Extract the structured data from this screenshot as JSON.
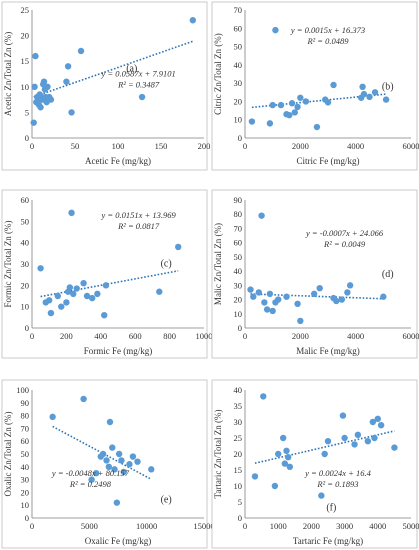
{
  "colors": {
    "marker": "#5b9bd5",
    "trendline": "#2e75b6",
    "axis": "#7f7f7f",
    "border": "#bfbfbf",
    "text": "#333333"
  },
  "chart_data": [
    {
      "id": "a",
      "type": "scatter",
      "panel_label": "(a)",
      "xlabel": "Acetic Fe (mg/kg)",
      "ylabel": "Acetic Zn/Total Zn (%)",
      "xlim": [
        0,
        200
      ],
      "ylim": [
        0,
        25
      ],
      "xticks": [
        0,
        50,
        100,
        150,
        200
      ],
      "yticks": [
        0,
        5,
        10,
        15,
        20,
        25
      ],
      "equation": "y = 0.0587x + 7.9101",
      "r_squared": "R² = 0.3487",
      "trendline": {
        "slope": 0.0587,
        "intercept": 7.9101
      },
      "legend": "none",
      "points": [
        {
          "x": 2,
          "y": 3
        },
        {
          "x": 3,
          "y": 10
        },
        {
          "x": 4,
          "y": 16
        },
        {
          "x": 5,
          "y": 7
        },
        {
          "x": 6,
          "y": 8
        },
        {
          "x": 7,
          "y": 7
        },
        {
          "x": 8,
          "y": 6.5
        },
        {
          "x": 9,
          "y": 8.5
        },
        {
          "x": 10,
          "y": 6
        },
        {
          "x": 11,
          "y": 8
        },
        {
          "x": 12,
          "y": 7.5
        },
        {
          "x": 13,
          "y": 10.5
        },
        {
          "x": 14,
          "y": 11
        },
        {
          "x": 15,
          "y": 9.5
        },
        {
          "x": 16,
          "y": 8
        },
        {
          "x": 17,
          "y": 7
        },
        {
          "x": 18,
          "y": 10
        },
        {
          "x": 20,
          "y": 8
        },
        {
          "x": 22,
          "y": 7.5
        },
        {
          "x": 40,
          "y": 11
        },
        {
          "x": 42,
          "y": 14
        },
        {
          "x": 46,
          "y": 5
        },
        {
          "x": 57,
          "y": 17
        },
        {
          "x": 128,
          "y": 8
        },
        {
          "x": 187,
          "y": 23
        }
      ]
    },
    {
      "id": "b",
      "type": "scatter",
      "panel_label": "(b)",
      "xlabel": "Citric Fe (mg/kg)",
      "ylabel": "Citric Zn/Total Zn (%)",
      "xlim": [
        0,
        6000
      ],
      "ylim": [
        0,
        70
      ],
      "xticks": [
        0,
        2000,
        4000,
        6000
      ],
      "yticks": [
        0,
        10,
        20,
        30,
        40,
        50,
        60,
        70
      ],
      "equation": "y = 0.0015x + 16.373",
      "r_squared": "R² = 0.0489",
      "trendline": {
        "slope": 0.0015,
        "intercept": 16.373
      },
      "legend": "none",
      "points": [
        {
          "x": 250,
          "y": 9
        },
        {
          "x": 900,
          "y": 8
        },
        {
          "x": 1000,
          "y": 18
        },
        {
          "x": 1100,
          "y": 59
        },
        {
          "x": 1300,
          "y": 18
        },
        {
          "x": 1500,
          "y": 13
        },
        {
          "x": 1600,
          "y": 12.5
        },
        {
          "x": 1700,
          "y": 19
        },
        {
          "x": 1800,
          "y": 14
        },
        {
          "x": 1900,
          "y": 17
        },
        {
          "x": 2000,
          "y": 22
        },
        {
          "x": 2200,
          "y": 20
        },
        {
          "x": 2600,
          "y": 6
        },
        {
          "x": 2900,
          "y": 21
        },
        {
          "x": 3000,
          "y": 19.5
        },
        {
          "x": 3200,
          "y": 29
        },
        {
          "x": 4200,
          "y": 22
        },
        {
          "x": 4250,
          "y": 28
        },
        {
          "x": 4300,
          "y": 24
        },
        {
          "x": 4500,
          "y": 22.5
        },
        {
          "x": 4700,
          "y": 25
        },
        {
          "x": 5100,
          "y": 21
        }
      ]
    },
    {
      "id": "c",
      "type": "scatter",
      "panel_label": "(c)",
      "xlabel": "Formic Fe (mg/kg)",
      "ylabel": "Formic Zn/Total Zn (%)",
      "xlim": [
        0,
        1000
      ],
      "ylim": [
        0,
        60
      ],
      "xticks": [
        0,
        200,
        400,
        600,
        800,
        1000
      ],
      "yticks": [
        0,
        10,
        20,
        30,
        40,
        50,
        60
      ],
      "equation": "y = 0.0151x + 13.969",
      "r_squared": "R² = 0.0817",
      "trendline": {
        "slope": 0.0151,
        "intercept": 13.969
      },
      "legend": "none",
      "points": [
        {
          "x": 50,
          "y": 28
        },
        {
          "x": 80,
          "y": 12
        },
        {
          "x": 100,
          "y": 13
        },
        {
          "x": 110,
          "y": 7
        },
        {
          "x": 150,
          "y": 15
        },
        {
          "x": 170,
          "y": 10
        },
        {
          "x": 200,
          "y": 12
        },
        {
          "x": 210,
          "y": 17
        },
        {
          "x": 220,
          "y": 19
        },
        {
          "x": 230,
          "y": 54
        },
        {
          "x": 240,
          "y": 16
        },
        {
          "x": 260,
          "y": 18.5
        },
        {
          "x": 300,
          "y": 21
        },
        {
          "x": 320,
          "y": 15
        },
        {
          "x": 350,
          "y": 14
        },
        {
          "x": 380,
          "y": 16
        },
        {
          "x": 420,
          "y": 6
        },
        {
          "x": 430,
          "y": 20
        },
        {
          "x": 740,
          "y": 17
        },
        {
          "x": 850,
          "y": 38
        }
      ]
    },
    {
      "id": "d",
      "type": "scatter",
      "panel_label": "(d)",
      "xlabel": "Malic Fe (mg/kg)",
      "ylabel": "Malic Zn/Total Zn (%)",
      "xlim": [
        0,
        6000
      ],
      "ylim": [
        0,
        90
      ],
      "xticks": [
        0,
        2000,
        4000,
        6000
      ],
      "yticks": [
        0,
        10,
        20,
        30,
        40,
        50,
        60,
        70,
        80,
        90
      ],
      "equation": "y = -0.0007x + 24.066",
      "r_squared": "R² = 0.0049",
      "trendline": {
        "slope": -0.0007,
        "intercept": 24.066
      },
      "legend": "none",
      "points": [
        {
          "x": 200,
          "y": 27
        },
        {
          "x": 300,
          "y": 22
        },
        {
          "x": 500,
          "y": 25
        },
        {
          "x": 600,
          "y": 79
        },
        {
          "x": 700,
          "y": 18
        },
        {
          "x": 800,
          "y": 13
        },
        {
          "x": 900,
          "y": 24
        },
        {
          "x": 1000,
          "y": 12
        },
        {
          "x": 1100,
          "y": 18
        },
        {
          "x": 1200,
          "y": 20
        },
        {
          "x": 1500,
          "y": 22
        },
        {
          "x": 1900,
          "y": 17
        },
        {
          "x": 2000,
          "y": 5
        },
        {
          "x": 2500,
          "y": 24
        },
        {
          "x": 2700,
          "y": 28
        },
        {
          "x": 3200,
          "y": 21
        },
        {
          "x": 3300,
          "y": 19
        },
        {
          "x": 3500,
          "y": 20
        },
        {
          "x": 3700,
          "y": 25
        },
        {
          "x": 3800,
          "y": 30
        },
        {
          "x": 5000,
          "y": 22
        }
      ]
    },
    {
      "id": "e",
      "type": "scatter",
      "panel_label": "(e)",
      "xlabel": "Oxalic Fe (mg/kg)",
      "ylabel": "Oxalic Zn/Total Zn (%)",
      "xlim": [
        0,
        15000
      ],
      "ylim": [
        0,
        100
      ],
      "xticks": [
        0,
        5000,
        10000,
        15000
      ],
      "yticks": [
        0,
        10,
        20,
        30,
        40,
        50,
        60,
        70,
        80,
        90,
        100
      ],
      "equation": "y = -0.0048x + 80.157",
      "r_squared": "R² = 0.2498",
      "trendline": {
        "slope": -0.0048,
        "intercept": 80.157
      },
      "legend": "none",
      "points": [
        {
          "x": 1800,
          "y": 79
        },
        {
          "x": 4500,
          "y": 93
        },
        {
          "x": 5200,
          "y": 30
        },
        {
          "x": 5600,
          "y": 35
        },
        {
          "x": 6000,
          "y": 48
        },
        {
          "x": 6200,
          "y": 50
        },
        {
          "x": 6500,
          "y": 45
        },
        {
          "x": 6700,
          "y": 40
        },
        {
          "x": 6800,
          "y": 75
        },
        {
          "x": 7000,
          "y": 55
        },
        {
          "x": 7200,
          "y": 38
        },
        {
          "x": 7400,
          "y": 12
        },
        {
          "x": 7600,
          "y": 50
        },
        {
          "x": 7800,
          "y": 45
        },
        {
          "x": 8000,
          "y": 36
        },
        {
          "x": 8500,
          "y": 42
        },
        {
          "x": 8800,
          "y": 48
        },
        {
          "x": 9200,
          "y": 44
        },
        {
          "x": 10400,
          "y": 38
        }
      ]
    },
    {
      "id": "f",
      "type": "scatter",
      "panel_label": "(f)",
      "xlabel": "Tartaric Fe (mg/kg)",
      "ylabel": "Tartaric Zn/Total Zn (%)",
      "xlim": [
        0,
        5000
      ],
      "ylim": [
        0,
        40
      ],
      "xticks": [
        0,
        1000,
        2000,
        3000,
        4000,
        5000
      ],
      "yticks": [
        0,
        5,
        10,
        15,
        20,
        25,
        30,
        35,
        40
      ],
      "equation": "y = 0.0024x + 16.4",
      "r_squared": "R² = 0.1893",
      "trendline": {
        "slope": 0.0024,
        "intercept": 16.4
      },
      "legend": "none",
      "points": [
        {
          "x": 300,
          "y": 13
        },
        {
          "x": 550,
          "y": 38
        },
        {
          "x": 900,
          "y": 10
        },
        {
          "x": 1000,
          "y": 20
        },
        {
          "x": 1150,
          "y": 25
        },
        {
          "x": 1200,
          "y": 17
        },
        {
          "x": 1250,
          "y": 21
        },
        {
          "x": 1300,
          "y": 19
        },
        {
          "x": 1350,
          "y": 16
        },
        {
          "x": 2300,
          "y": 7
        },
        {
          "x": 2400,
          "y": 20
        },
        {
          "x": 2500,
          "y": 24
        },
        {
          "x": 2950,
          "y": 32
        },
        {
          "x": 3000,
          "y": 25
        },
        {
          "x": 3300,
          "y": 23
        },
        {
          "x": 3400,
          "y": 26
        },
        {
          "x": 3700,
          "y": 24
        },
        {
          "x": 3850,
          "y": 30
        },
        {
          "x": 3900,
          "y": 25
        },
        {
          "x": 4000,
          "y": 31
        },
        {
          "x": 4100,
          "y": 29
        },
        {
          "x": 4500,
          "y": 22
        }
      ]
    }
  ]
}
